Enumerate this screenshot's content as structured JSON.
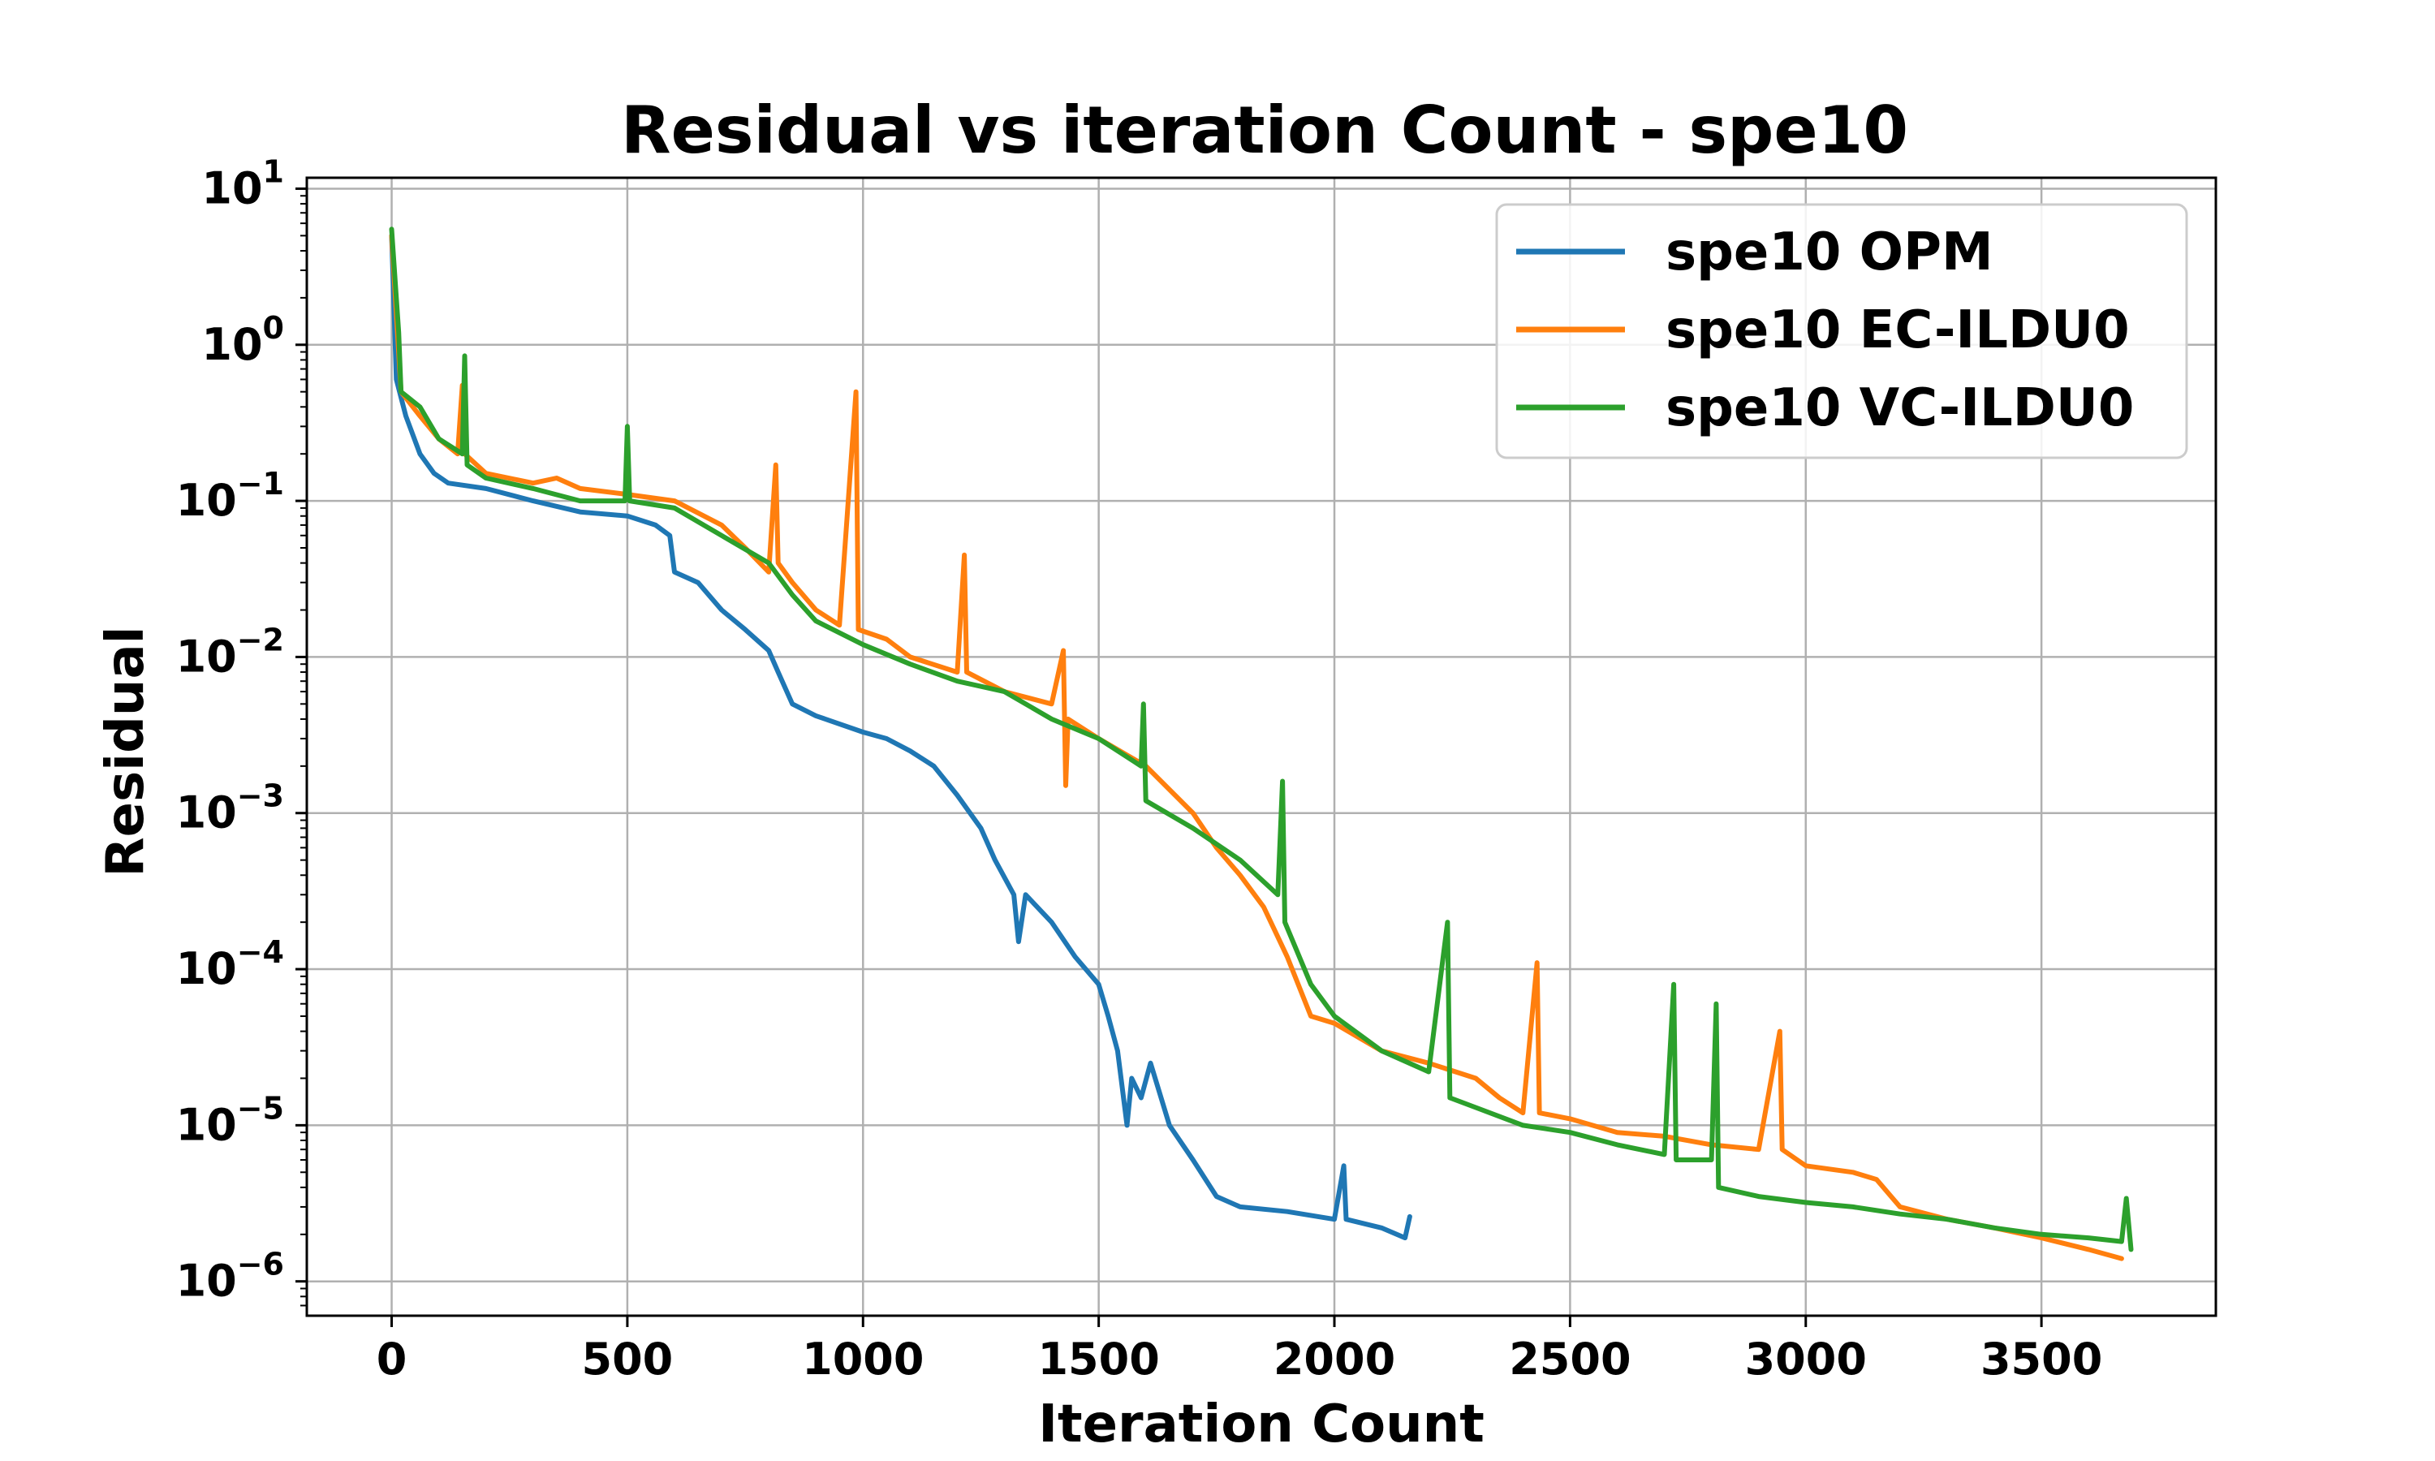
{
  "chart_data": {
    "type": "line",
    "title": "Residual vs iteration Count - spe10",
    "xlabel": "Iteration Count",
    "ylabel": "Residual",
    "xlim": [
      -180,
      3870
    ],
    "ylim_log10": [
      -6.22,
      1.07
    ],
    "yscale": "log",
    "grid": true,
    "legend_position": "top-right",
    "x_ticks": [
      0,
      500,
      1000,
      1500,
      2000,
      2500,
      3000,
      3500
    ],
    "x_tick_labels": [
      "0",
      "500",
      "1000",
      "1500",
      "2000",
      "2500",
      "3000",
      "3500"
    ],
    "y_ticks": [
      {
        "base": "10",
        "exp": "1",
        "log10": 1
      },
      {
        "base": "10",
        "exp": "0",
        "log10": 0
      },
      {
        "base": "10",
        "exp": "−1",
        "log10": -1
      },
      {
        "base": "10",
        "exp": "−2",
        "log10": -2
      },
      {
        "base": "10",
        "exp": "−3",
        "log10": -3
      },
      {
        "base": "10",
        "exp": "−4",
        "log10": -4
      },
      {
        "base": "10",
        "exp": "−5",
        "log10": -5
      },
      {
        "base": "10",
        "exp": "−6",
        "log10": -6
      }
    ],
    "series": [
      {
        "name": "spe10 OPM",
        "color": "#1f77b4",
        "points": [
          [
            0,
            5.0
          ],
          [
            10,
            0.6
          ],
          [
            30,
            0.35
          ],
          [
            60,
            0.2
          ],
          [
            90,
            0.15
          ],
          [
            120,
            0.13
          ],
          [
            200,
            0.12
          ],
          [
            300,
            0.1
          ],
          [
            400,
            0.085
          ],
          [
            500,
            0.08
          ],
          [
            560,
            0.07
          ],
          [
            590,
            0.06
          ],
          [
            600,
            0.035
          ],
          [
            650,
            0.03
          ],
          [
            700,
            0.02
          ],
          [
            750,
            0.015
          ],
          [
            800,
            0.011
          ],
          [
            820,
            0.008
          ],
          [
            850,
            0.005
          ],
          [
            900,
            0.0042
          ],
          [
            1000,
            0.0033
          ],
          [
            1050,
            0.003
          ],
          [
            1100,
            0.0025
          ],
          [
            1150,
            0.002
          ],
          [
            1200,
            0.0013
          ],
          [
            1250,
            0.0008
          ],
          [
            1280,
            0.0005
          ],
          [
            1320,
            0.0003
          ],
          [
            1330,
            0.00015
          ],
          [
            1345,
            0.0003
          ],
          [
            1400,
            0.0002
          ],
          [
            1450,
            0.00012
          ],
          [
            1500,
            8e-05
          ],
          [
            1520,
            5e-05
          ],
          [
            1540,
            3e-05
          ],
          [
            1560,
            1e-05
          ],
          [
            1570,
            2e-05
          ],
          [
            1590,
            1.5e-05
          ],
          [
            1610,
            2.5e-05
          ],
          [
            1650,
            1e-05
          ],
          [
            1700,
            6e-06
          ],
          [
            1750,
            3.5e-06
          ],
          [
            1800,
            3e-06
          ],
          [
            1900,
            2.8e-06
          ],
          [
            2000,
            2.5e-06
          ],
          [
            2020,
            5.5e-06
          ],
          [
            2025,
            2.5e-06
          ],
          [
            2100,
            2.2e-06
          ],
          [
            2150,
            1.9e-06
          ],
          [
            2160,
            2.6e-06
          ]
        ]
      },
      {
        "name": "spe10 EC-ILDU0",
        "color": "#ff7f0e",
        "points": [
          [
            0,
            5.0
          ],
          [
            20,
            0.5
          ],
          [
            60,
            0.35
          ],
          [
            100,
            0.25
          ],
          [
            140,
            0.2
          ],
          [
            150,
            0.55
          ],
          [
            155,
            0.2
          ],
          [
            200,
            0.15
          ],
          [
            300,
            0.13
          ],
          [
            350,
            0.14
          ],
          [
            400,
            0.12
          ],
          [
            500,
            0.11
          ],
          [
            600,
            0.1
          ],
          [
            700,
            0.07
          ],
          [
            750,
            0.05
          ],
          [
            800,
            0.035
          ],
          [
            815,
            0.17
          ],
          [
            820,
            0.04
          ],
          [
            850,
            0.03
          ],
          [
            900,
            0.02
          ],
          [
            950,
            0.016
          ],
          [
            985,
            0.5
          ],
          [
            990,
            0.015
          ],
          [
            1050,
            0.013
          ],
          [
            1100,
            0.01
          ],
          [
            1200,
            0.008
          ],
          [
            1215,
            0.045
          ],
          [
            1220,
            0.008
          ],
          [
            1300,
            0.006
          ],
          [
            1400,
            0.005
          ],
          [
            1425,
            0.011
          ],
          [
            1430,
            0.0015
          ],
          [
            1435,
            0.004
          ],
          [
            1500,
            0.003
          ],
          [
            1600,
            0.002
          ],
          [
            1700,
            0.001
          ],
          [
            1750,
            0.0006
          ],
          [
            1800,
            0.0004
          ],
          [
            1850,
            0.00025
          ],
          [
            1900,
            0.00012
          ],
          [
            1950,
            5e-05
          ],
          [
            2000,
            4.5e-05
          ],
          [
            2100,
            3e-05
          ],
          [
            2200,
            2.5e-05
          ],
          [
            2300,
            2e-05
          ],
          [
            2350,
            1.5e-05
          ],
          [
            2400,
            1.2e-05
          ],
          [
            2430,
            0.00011
          ],
          [
            2435,
            1.2e-05
          ],
          [
            2500,
            1.1e-05
          ],
          [
            2600,
            9e-06
          ],
          [
            2700,
            8.5e-06
          ],
          [
            2800,
            7.5e-06
          ],
          [
            2900,
            7e-06
          ],
          [
            2945,
            4e-05
          ],
          [
            2950,
            7e-06
          ],
          [
            3000,
            5.5e-06
          ],
          [
            3100,
            5e-06
          ],
          [
            3150,
            4.5e-06
          ],
          [
            3200,
            3e-06
          ],
          [
            3300,
            2.5e-06
          ],
          [
            3400,
            2.2e-06
          ],
          [
            3500,
            1.9e-06
          ],
          [
            3600,
            1.6e-06
          ],
          [
            3670,
            1.4e-06
          ]
        ]
      },
      {
        "name": "spe10 VC-ILDU0",
        "color": "#2ca02c",
        "points": [
          [
            0,
            5.5
          ],
          [
            15,
            1.2
          ],
          [
            20,
            0.5
          ],
          [
            60,
            0.4
          ],
          [
            100,
            0.25
          ],
          [
            150,
            0.2
          ],
          [
            155,
            0.85
          ],
          [
            160,
            0.17
          ],
          [
            200,
            0.14
          ],
          [
            300,
            0.12
          ],
          [
            400,
            0.1
          ],
          [
            495,
            0.1
          ],
          [
            500,
            0.3
          ],
          [
            505,
            0.1
          ],
          [
            600,
            0.09
          ],
          [
            700,
            0.06
          ],
          [
            800,
            0.04
          ],
          [
            850,
            0.025
          ],
          [
            900,
            0.017
          ],
          [
            1000,
            0.012
          ],
          [
            1100,
            0.009
          ],
          [
            1200,
            0.007
          ],
          [
            1300,
            0.006
          ],
          [
            1400,
            0.004
          ],
          [
            1500,
            0.003
          ],
          [
            1590,
            0.002
          ],
          [
            1595,
            0.005
          ],
          [
            1600,
            0.0012
          ],
          [
            1700,
            0.0008
          ],
          [
            1800,
            0.0005
          ],
          [
            1880,
            0.0003
          ],
          [
            1890,
            0.0016
          ],
          [
            1895,
            0.0002
          ],
          [
            1950,
            8e-05
          ],
          [
            2000,
            5e-05
          ],
          [
            2100,
            3e-05
          ],
          [
            2200,
            2.2e-05
          ],
          [
            2240,
            0.0002
          ],
          [
            2245,
            1.5e-05
          ],
          [
            2300,
            1.3e-05
          ],
          [
            2400,
            1e-05
          ],
          [
            2500,
            9e-06
          ],
          [
            2600,
            7.5e-06
          ],
          [
            2700,
            6.5e-06
          ],
          [
            2720,
            8e-05
          ],
          [
            2725,
            6e-06
          ],
          [
            2800,
            6e-06
          ],
          [
            2810,
            6e-05
          ],
          [
            2815,
            4e-06
          ],
          [
            2900,
            3.5e-06
          ],
          [
            3000,
            3.2e-06
          ],
          [
            3100,
            3e-06
          ],
          [
            3200,
            2.7e-06
          ],
          [
            3300,
            2.5e-06
          ],
          [
            3400,
            2.2e-06
          ],
          [
            3500,
            2e-06
          ],
          [
            3600,
            1.9e-06
          ],
          [
            3670,
            1.8e-06
          ],
          [
            3680,
            3.4e-06
          ],
          [
            3690,
            1.6e-06
          ]
        ]
      }
    ]
  }
}
